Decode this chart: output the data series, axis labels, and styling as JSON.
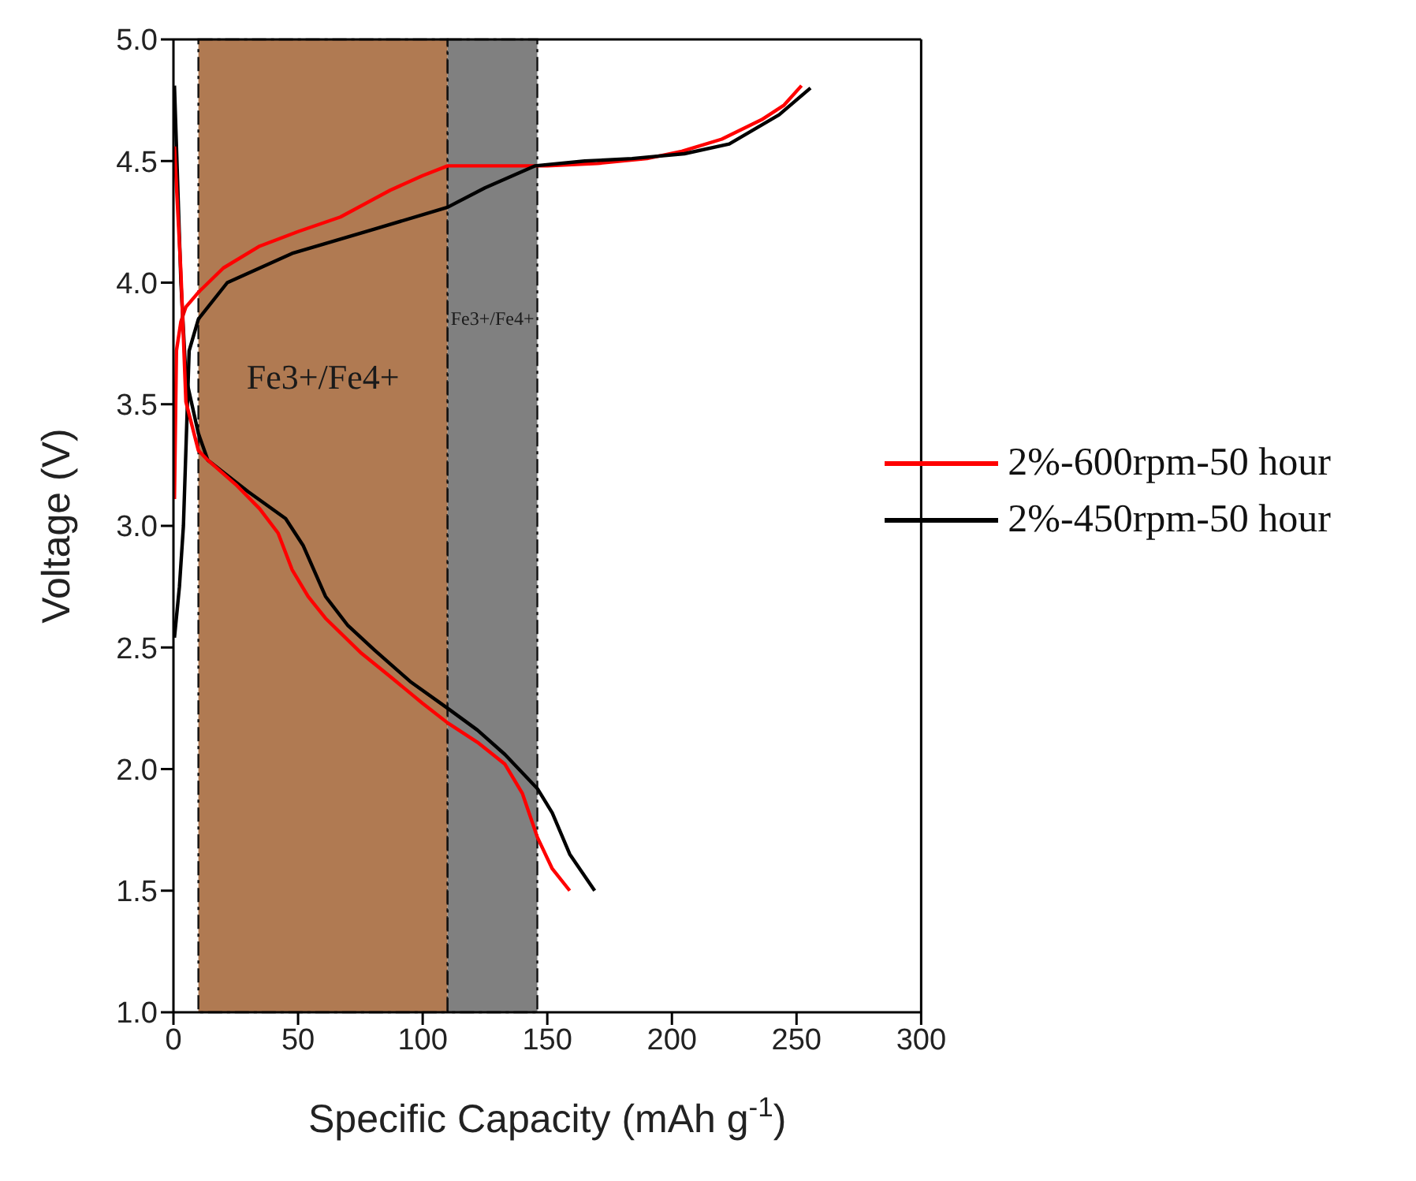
{
  "chart_data": {
    "type": "line",
    "xlabel": "Specific Capacity (mAh g$^{-1}$)",
    "ylabel": "Voltage (V)",
    "xlim": [
      0,
      300
    ],
    "xticks": [
      0,
      50,
      100,
      150,
      200,
      250,
      300
    ],
    "ylim": [
      1.0,
      5.0
    ],
    "yticks": [
      {
        "value": 1.0,
        "label": "1.0"
      },
      {
        "value": 1.5,
        "label": "1.5"
      },
      {
        "value": 2.0,
        "label": "2.0"
      },
      {
        "value": 2.5,
        "label": "2.5"
      },
      {
        "value": 3.0,
        "label": "3.0"
      },
      {
        "value": 3.5,
        "label": "3.5"
      },
      {
        "value": 4.0,
        "label": "4.0"
      },
      {
        "value": 4.5,
        "label": "4.5"
      },
      {
        "value": 5.0,
        "label": "5.0"
      }
    ],
    "legend": "right",
    "marker": "none",
    "line_style": "solid",
    "bands": [
      {
        "axis": "x",
        "from": 10,
        "to": 110,
        "label": "Fe3+/Fe4+",
        "color": "#b07a52"
      },
      {
        "axis": "x",
        "from": 110,
        "to": 146,
        "label": "Fe3+/Fe4+",
        "color": "#808080"
      }
    ],
    "series": [
      {
        "name": "2%-600rpm-50 hour",
        "color": "#ff0000",
        "x": [
          0.4,
          1.2,
          3,
          5,
          10,
          20,
          34.6,
          50,
          67,
          87,
          100,
          110,
          130,
          150,
          170,
          190,
          204,
          220,
          236,
          245,
          252
        ],
        "values": [
          3.11,
          3.72,
          3.84,
          3.9,
          3.96,
          4.06,
          4.15,
          4.21,
          4.27,
          4.38,
          4.44,
          4.48,
          4.48,
          4.48,
          4.49,
          4.51,
          4.54,
          4.59,
          4.67,
          4.73,
          4.81
        ]
      },
      {
        "name": "2%-450rpm-50 hour",
        "color": "#000000",
        "x": [
          0.4,
          2.4,
          4,
          6.3,
          10,
          21.6,
          47.6,
          80.6,
          110,
          125,
          145,
          165,
          184,
          205,
          223,
          243,
          255.6
        ],
        "values": [
          2.54,
          2.75,
          3.0,
          3.72,
          3.85,
          4.0,
          4.12,
          4.22,
          4.31,
          4.39,
          4.48,
          4.5,
          4.51,
          4.53,
          4.57,
          4.69,
          4.8
        ]
      },
      {
        "color": "#000000",
        "x": [
          0.4,
          3,
          5,
          10,
          13.8,
          30,
          45,
          52,
          61,
          70,
          80.6,
          95,
          110,
          122,
          133,
          146,
          152,
          159,
          169
        ],
        "values": [
          4.81,
          4.0,
          3.61,
          3.38,
          3.27,
          3.14,
          3.03,
          2.92,
          2.71,
          2.59,
          2.49,
          2.36,
          2.25,
          2.16,
          2.06,
          1.92,
          1.82,
          1.65,
          1.5
        ]
      },
      {
        "color": "#ff0000",
        "x": [
          0.4,
          3,
          5,
          10,
          13.8,
          25,
          34.6,
          42,
          47.6,
          54,
          61,
          75,
          87,
          100,
          110,
          122,
          133,
          140,
          146,
          152,
          159
        ],
        "values": [
          4.56,
          4.04,
          3.51,
          3.31,
          3.27,
          3.17,
          3.07,
          2.97,
          2.82,
          2.71,
          2.62,
          2.48,
          2.38,
          2.27,
          2.19,
          2.11,
          2.02,
          1.9,
          1.72,
          1.59,
          1.5
        ]
      }
    ]
  }
}
